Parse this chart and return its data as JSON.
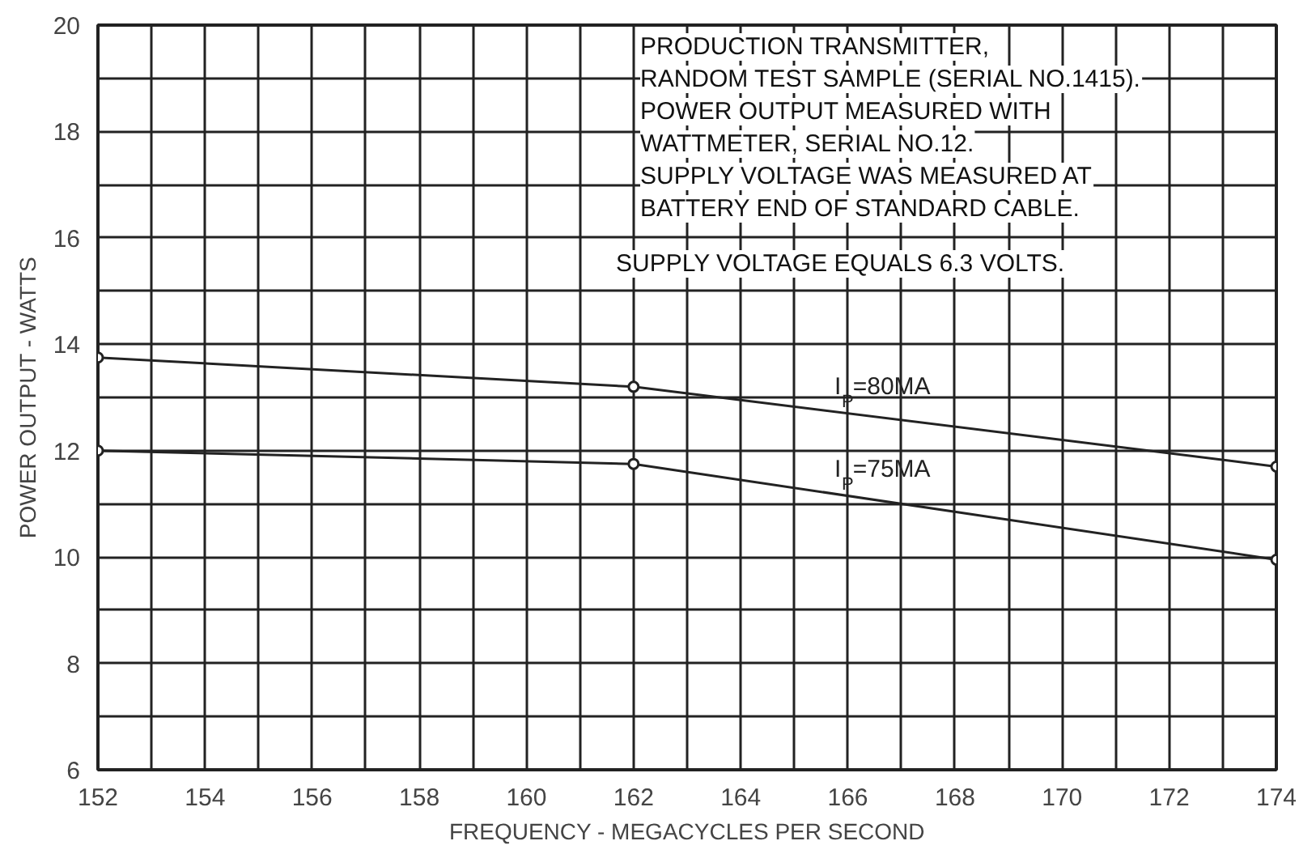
{
  "chart_data": {
    "type": "line",
    "xlabel": "FREQUENCY - MEGACYCLES PER SECOND",
    "ylabel": "POWER OUTPUT - WATTS",
    "x": [
      152,
      162,
      174
    ],
    "series": [
      {
        "name": "I$_{P}$=80MA",
        "color": "#222222",
        "values": [
          13.75,
          13.2,
          11.7
        ]
      },
      {
        "name": "I$_{P}$=75MA",
        "color": "#222222",
        "values": [
          12.0,
          11.75,
          9.95
        ]
      }
    ],
    "xlim": [
      152,
      174
    ],
    "ylim": [
      6,
      20
    ],
    "xticks": [
      152,
      {
        "value": 153,
        "label": null
      },
      154,
      {
        "value": 155,
        "label": null
      },
      156,
      {
        "value": 157,
        "label": null
      },
      158,
      {
        "value": 159,
        "label": null
      },
      160,
      {
        "value": 161,
        "label": null
      },
      162,
      {
        "value": 163,
        "label": null
      },
      164,
      {
        "value": 165,
        "label": null
      },
      166,
      {
        "value": 167,
        "label": null
      },
      168,
      {
        "value": 169,
        "label": null
      },
      170,
      {
        "value": 171,
        "label": null
      },
      172,
      {
        "value": 173,
        "label": null
      },
      174
    ],
    "yticks": [
      6,
      {
        "value": 7,
        "label": null
      },
      8,
      {
        "value": 9,
        "label": null
      },
      10,
      {
        "value": 11,
        "label": null
      },
      12,
      {
        "value": 13,
        "label": null
      },
      14,
      {
        "value": 15,
        "label": null
      },
      16,
      {
        "value": 17,
        "label": null
      },
      18,
      {
        "value": 19,
        "label": null
      },
      20
    ],
    "annotations": [
      "PRODUCTION TRANSMITTER,",
      "RANDOM TEST SAMPLE (SERIAL NO.1415).",
      "POWER OUTPUT MEASURED WITH",
      "WATTMETER, SERIAL NO.12.",
      "SUPPLY VOLTAGE WAS MEASURED AT",
      "BATTERY END OF STANDARD CABLE.",
      "SUPPLY VOLTAGE EQUALS 6.3 VOLTS."
    ],
    "grid": true,
    "marker": "circle",
    "line_style": "solid"
  }
}
